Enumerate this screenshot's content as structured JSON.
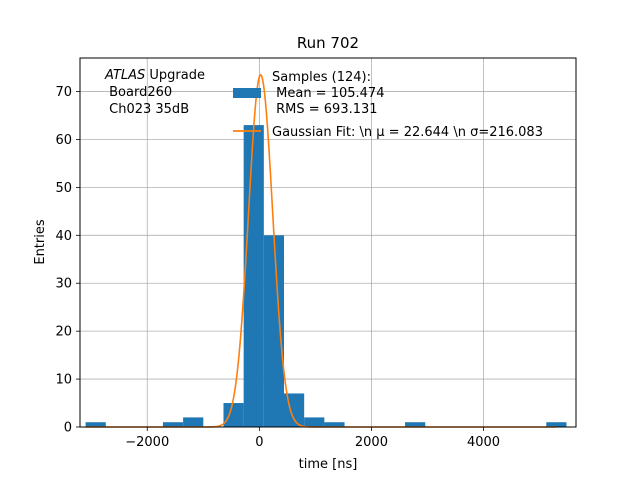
{
  "chart_data": {
    "type": "bar",
    "title": "Run 702",
    "xlabel": "time [ns]",
    "ylabel": "Entries",
    "xlim": [
      -3200,
      5650
    ],
    "ylim": [
      0,
      77
    ],
    "xticks": [
      -2000,
      0,
      2000,
      4000
    ],
    "xtick_labels": [
      "−2000",
      "0",
      "2000",
      "4000"
    ],
    "yticks": [
      0,
      10,
      20,
      30,
      40,
      50,
      60,
      70
    ],
    "ytick_labels": [
      "0",
      "10",
      "20",
      "30",
      "40",
      "50",
      "60",
      "70"
    ],
    "grid": true,
    "histogram": {
      "name": "Samples (124):",
      "color": "#1f77b4",
      "bin_width": 360,
      "bins": [
        {
          "x0": -3100,
          "count": 1
        },
        {
          "x0": -1720,
          "count": 1
        },
        {
          "x0": -1360,
          "count": 2
        },
        {
          "x0": -640,
          "count": 5
        },
        {
          "x0": -280,
          "count": 63
        },
        {
          "x0": 80,
          "count": 40
        },
        {
          "x0": 440,
          "count": 7
        },
        {
          "x0": 800,
          "count": 2
        },
        {
          "x0": 1160,
          "count": 1
        },
        {
          "x0": 2600,
          "count": 1
        },
        {
          "x0": 5120,
          "count": 1
        }
      ]
    },
    "fit": {
      "name": "Gaussian Fit: \\n $\\mu$ = 22.644 \\n $\\sigma$=216.083",
      "color": "#ff7f0e",
      "mu": 22.644,
      "sigma": 216.083,
      "amplitude": 73.5,
      "x_range": [
        -3100,
        5300
      ]
    },
    "legend": {
      "placement": "top-right",
      "hist_lines": [
        "Samples (124):",
        " Mean = 105.474",
        " RMS = 693.131"
      ],
      "fit_label": "Gaussian Fit: \\n μ = 22.644 \\n σ=216.083"
    },
    "annotation": {
      "atlas": "ATLAS",
      "atlas_suffix": " Upgrade",
      "line2": " Board260",
      "line3": " Ch023 35dB"
    }
  }
}
